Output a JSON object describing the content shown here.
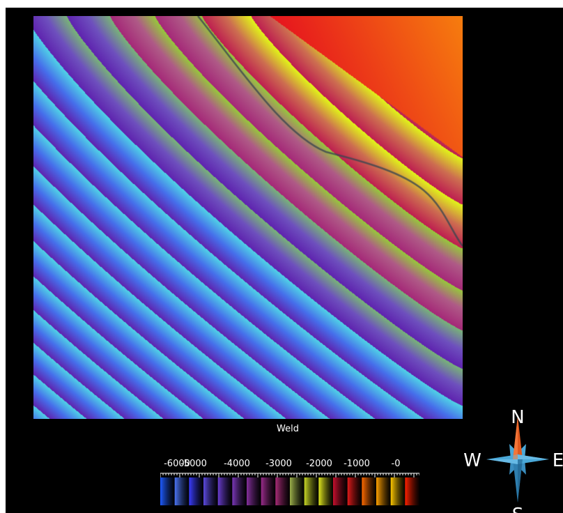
{
  "plot": {
    "label": "Weld"
  },
  "legend": {
    "tick_labels": [
      "-6000",
      "-5000",
      "-4000",
      "-3000",
      "-2000",
      "-1000",
      "-0"
    ],
    "band_colors": [
      "#1e5bff",
      "#4b74f5",
      "#3b3dff",
      "#5c4ae0",
      "#6a3dd0",
      "#7a37b8",
      "#86309e",
      "#9a2c8c",
      "#a82c78",
      "#9cb04a",
      "#c8d826",
      "#e0e81e",
      "#c8102e",
      "#e01a1a",
      "#ff6a00",
      "#ffa000",
      "#ffc800",
      "#ff2000"
    ]
  },
  "compass": {
    "north": "N",
    "south": "S",
    "east": "E",
    "west": "W",
    "needle_north_color": "#e0581e",
    "needle_color": "#4aa8d8"
  }
}
